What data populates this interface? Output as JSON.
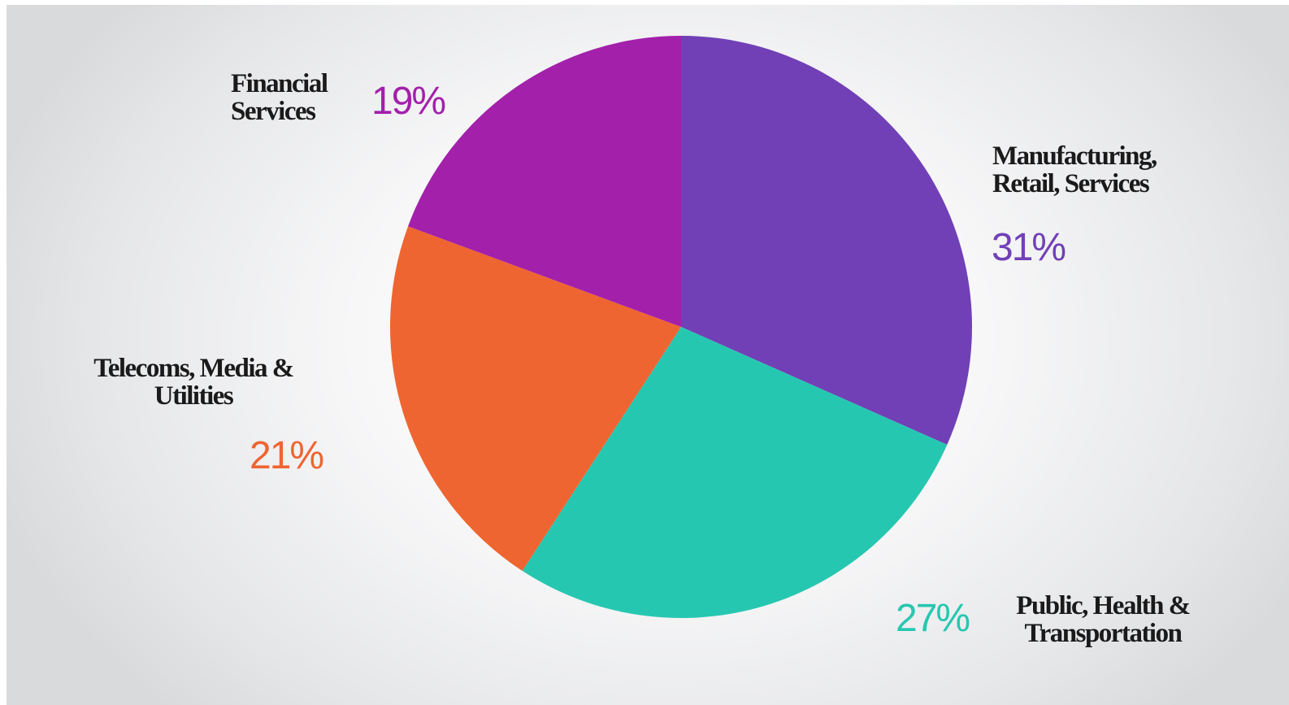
{
  "chart_data": {
    "type": "pie",
    "title": "",
    "slices": [
      {
        "label": "Manufacturing,\nRetail, Services",
        "value": 31,
        "display": "31%",
        "color": "#7140b6"
      },
      {
        "label": "Public, Health &\nTransportation",
        "value": 27,
        "display": "27%",
        "color": "#26c7b0"
      },
      {
        "label": "Telecoms, Media &\nUtilities",
        "value": 21,
        "display": "21%",
        "color": "#ef6531"
      },
      {
        "label": "Financial\nServices",
        "value": 19,
        "display": "19%",
        "color": "#a320ab"
      }
    ],
    "start_angle_deg": 0,
    "direction": "clockwise",
    "legend": "none",
    "data_labels": "outside"
  }
}
